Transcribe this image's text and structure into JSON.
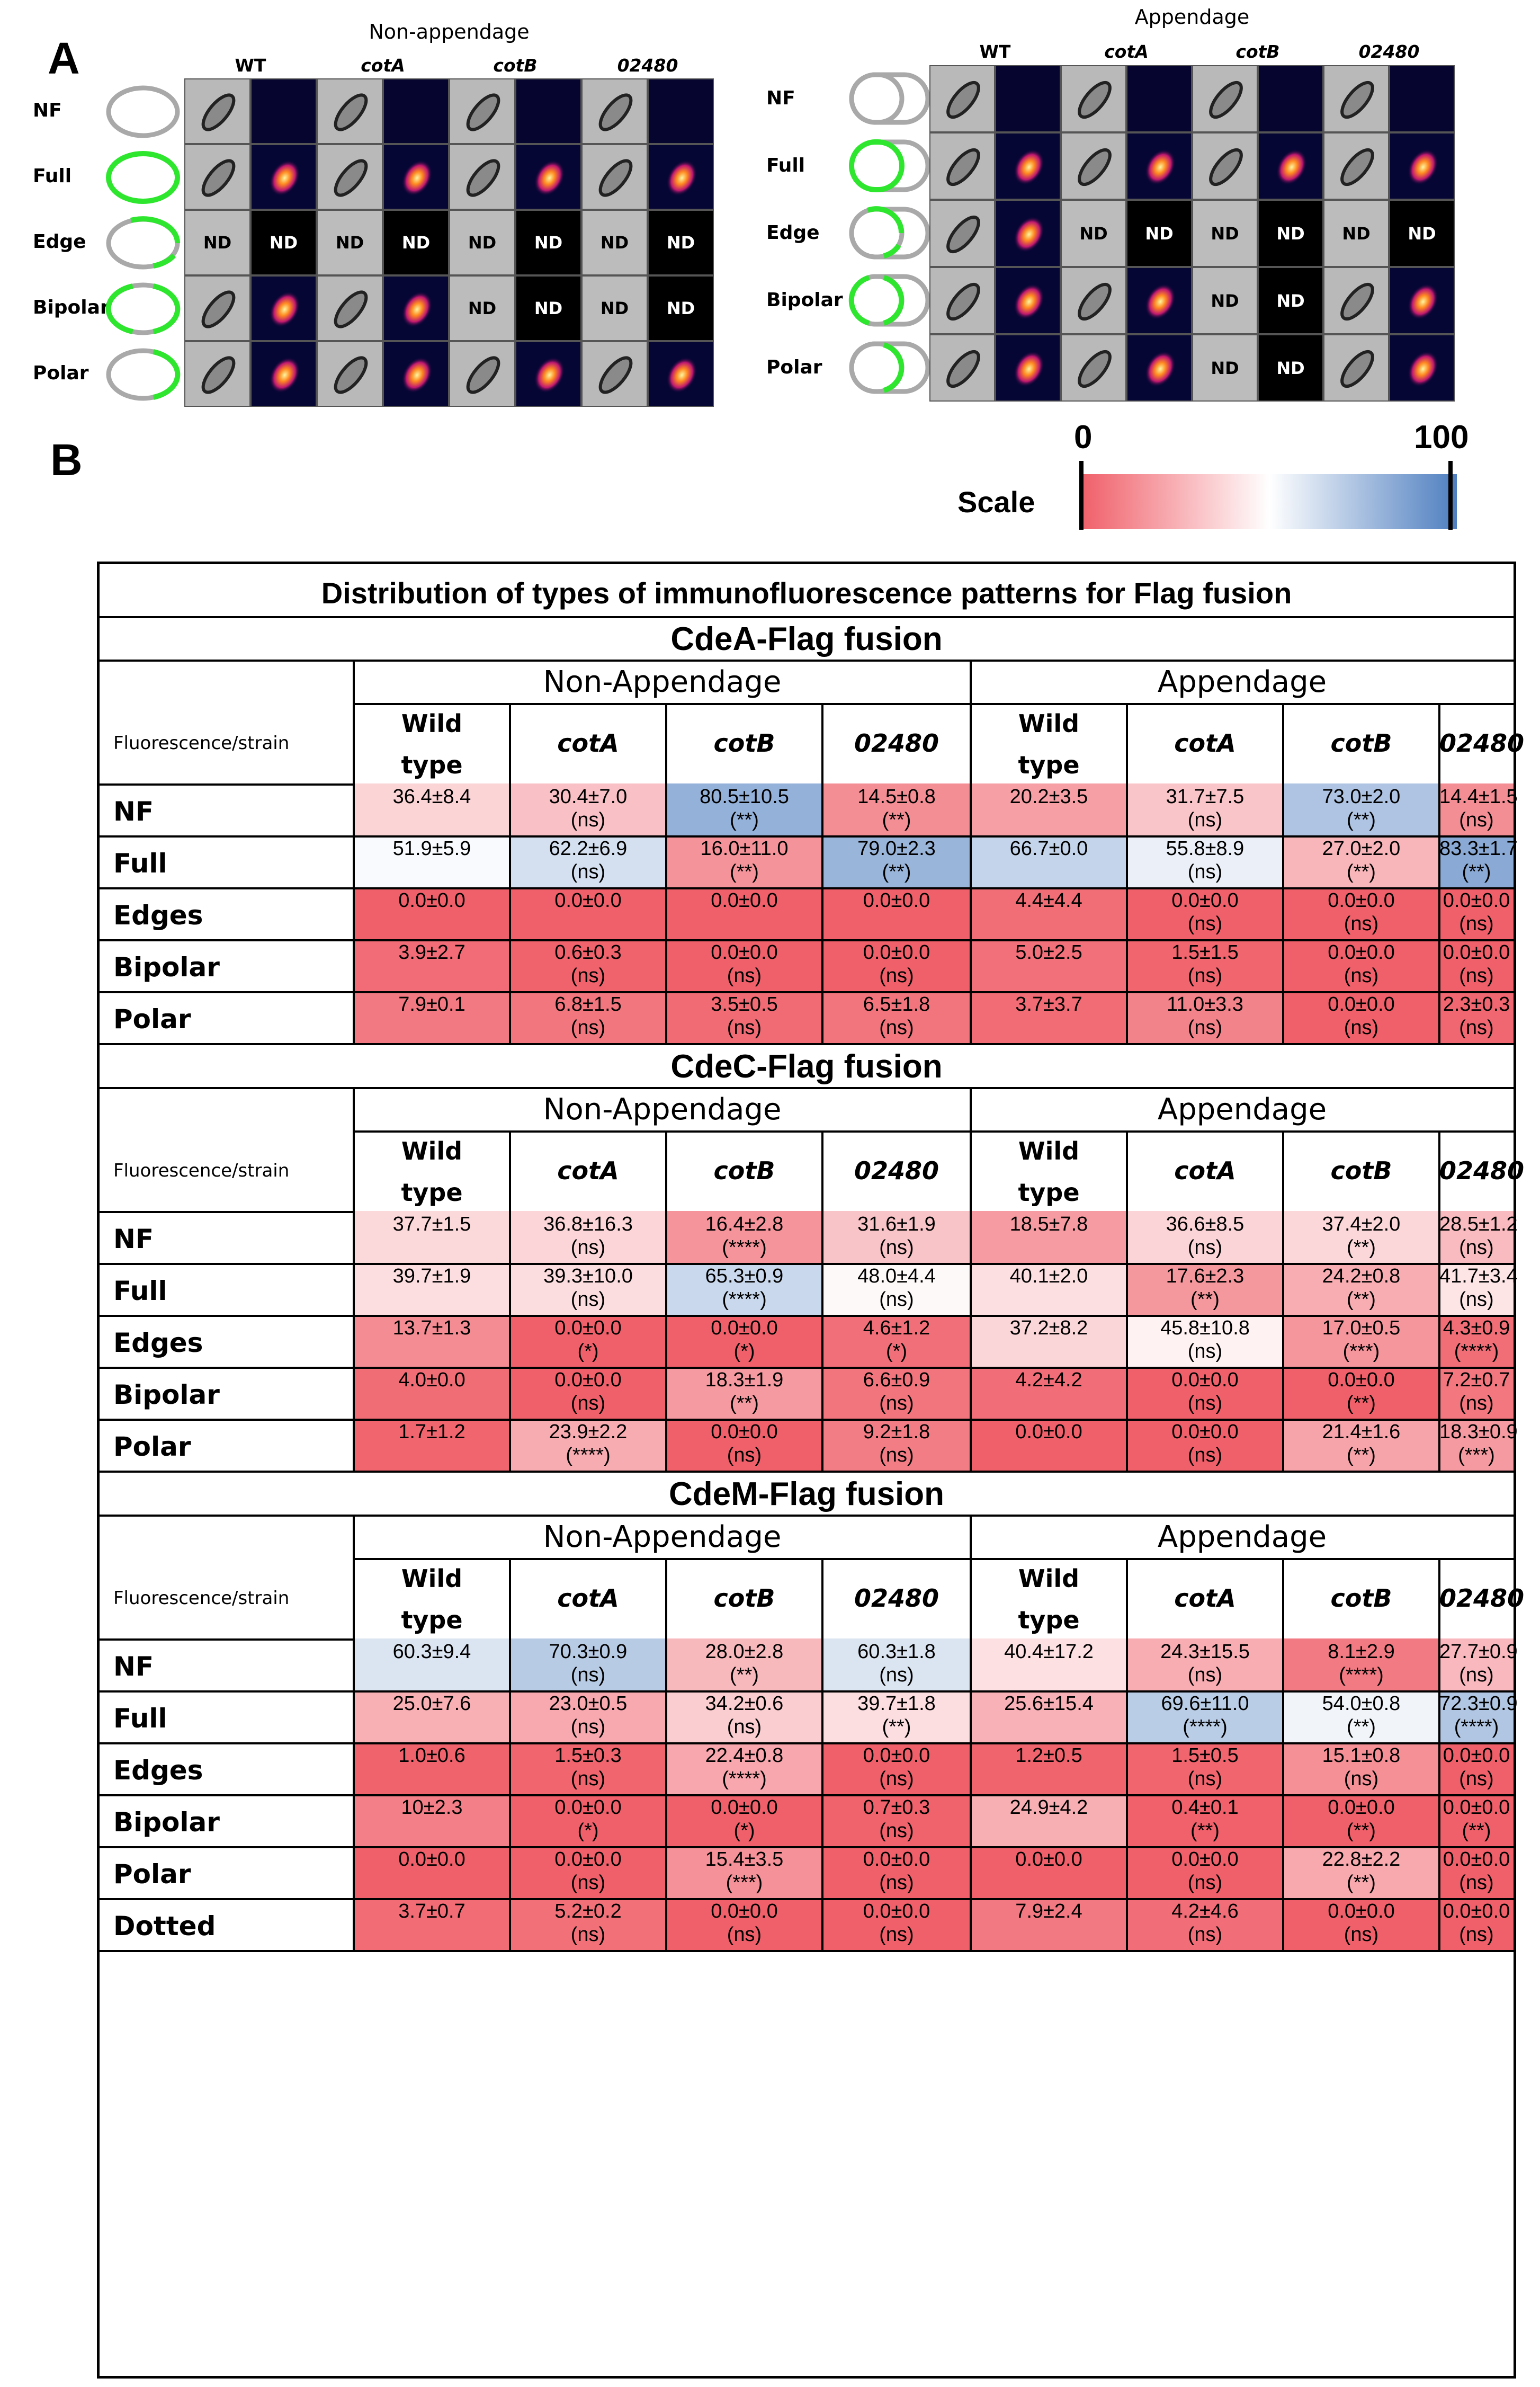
{
  "panel_a": {
    "letter": "A",
    "groups": [
      {
        "title": "Non-appendage",
        "columns": [
          "WT",
          "cotA",
          "cotB",
          "02480"
        ]
      },
      {
        "title": "Appendage",
        "columns": [
          "WT",
          "cotA",
          "cotB",
          "02480"
        ]
      }
    ],
    "rows": [
      "NF",
      "Full",
      "Edge",
      "Bipolar",
      "Polar"
    ],
    "nd_label": "ND"
  },
  "panel_b": {
    "letter": "B"
  },
  "scale": {
    "label": "Scale",
    "min_label": "0",
    "max_label": "100",
    "min_color": "#f0606a",
    "mid_color": "#ffffff",
    "max_color": "#4f7fc0"
  },
  "table": {
    "title": "Distribution of types of immunofluorescence patterns for Flag fusion",
    "group_labels": [
      "Non-Appendage",
      "Appendage"
    ],
    "row_header": "Fluorescence/strain",
    "strains": [
      "Wild\ntype",
      "cotA",
      "cotB",
      "02480",
      "Wild\ntype",
      "cotA",
      "cotB",
      "02480"
    ],
    "sections": [
      {
        "title": "CdeA-Flag fusion",
        "rows": [
          {
            "label": "NF",
            "cells": [
              {
                "v": "36.4±8.4",
                "s": ""
              },
              {
                "v": "30.4±7.0",
                "s": "(ns)"
              },
              {
                "v": "80.5±10.5",
                "s": "(**)"
              },
              {
                "v": "14.5±0.8",
                "s": "(**)"
              },
              {
                "v": "20.2±3.5",
                "s": ""
              },
              {
                "v": "31.7±7.5",
                "s": "(ns)"
              },
              {
                "v": "73.0±2.0",
                "s": "(**)"
              },
              {
                "v": "14.4±1.5",
                "s": "(ns)"
              }
            ]
          },
          {
            "label": "Full",
            "cells": [
              {
                "v": "51.9±5.9",
                "s": ""
              },
              {
                "v": "62.2±6.9",
                "s": "(ns)"
              },
              {
                "v": "16.0±11.0",
                "s": "(**)"
              },
              {
                "v": "79.0±2.3",
                "s": "(**)"
              },
              {
                "v": "66.7±0.0",
                "s": ""
              },
              {
                "v": "55.8±8.9",
                "s": "(ns)"
              },
              {
                "v": "27.0±2.0",
                "s": "(**)"
              },
              {
                "v": "83.3±1.7",
                "s": "(**)"
              }
            ]
          },
          {
            "label": "Edges",
            "cells": [
              {
                "v": "0.0±0.0",
                "s": ""
              },
              {
                "v": "0.0±0.0",
                "s": ""
              },
              {
                "v": "0.0±0.0",
                "s": ""
              },
              {
                "v": "0.0±0.0",
                "s": ""
              },
              {
                "v": "4.4±4.4",
                "s": ""
              },
              {
                "v": "0.0±0.0",
                "s": "(ns)"
              },
              {
                "v": "0.0±0.0",
                "s": "(ns)"
              },
              {
                "v": "0.0±0.0",
                "s": "(ns)"
              }
            ]
          },
          {
            "label": "Bipolar",
            "cells": [
              {
                "v": "3.9±2.7",
                "s": ""
              },
              {
                "v": "0.6±0.3",
                "s": "(ns)"
              },
              {
                "v": "0.0±0.0",
                "s": "(ns)"
              },
              {
                "v": "0.0±0.0",
                "s": "(ns)"
              },
              {
                "v": "5.0±2.5",
                "s": ""
              },
              {
                "v": "1.5±1.5",
                "s": "(ns)"
              },
              {
                "v": "0.0±0.0",
                "s": "(ns)"
              },
              {
                "v": "0.0±0.0",
                "s": "(ns)"
              }
            ]
          },
          {
            "label": "Polar",
            "cells": [
              {
                "v": "7.9±0.1",
                "s": ""
              },
              {
                "v": "6.8±1.5",
                "s": "(ns)"
              },
              {
                "v": "3.5±0.5",
                "s": "(ns)"
              },
              {
                "v": "6.5±1.8",
                "s": "(ns)"
              },
              {
                "v": "3.7±3.7",
                "s": ""
              },
              {
                "v": "11.0±3.3",
                "s": "(ns)"
              },
              {
                "v": "0.0±0.0",
                "s": "(ns)"
              },
              {
                "v": "2.3±0.3",
                "s": "(ns)"
              }
            ]
          }
        ]
      },
      {
        "title": "CdeC-Flag fusion",
        "rows": [
          {
            "label": "NF",
            "cells": [
              {
                "v": "37.7±1.5",
                "s": ""
              },
              {
                "v": "36.8±16.3",
                "s": "(ns)"
              },
              {
                "v": "16.4±2.8",
                "s": "(****)"
              },
              {
                "v": "31.6±1.9",
                "s": "(ns)"
              },
              {
                "v": "18.5±7.8",
                "s": ""
              },
              {
                "v": "36.6±8.5",
                "s": "(ns)"
              },
              {
                "v": "37.4±2.0",
                "s": "(**)"
              },
              {
                "v": "28.5±1.2",
                "s": "(ns)"
              }
            ]
          },
          {
            "label": "Full",
            "cells": [
              {
                "v": "39.7±1.9",
                "s": ""
              },
              {
                "v": "39.3±10.0",
                "s": "(ns)"
              },
              {
                "v": "65.3±0.9",
                "s": "(****)"
              },
              {
                "v": "48.0±4.4",
                "s": "(ns)"
              },
              {
                "v": "40.1±2.0",
                "s": ""
              },
              {
                "v": "17.6±2.3",
                "s": "(**)"
              },
              {
                "v": "24.2±0.8",
                "s": "(**)"
              },
              {
                "v": "41.7±3.4",
                "s": "(ns)"
              }
            ]
          },
          {
            "label": "Edges",
            "cells": [
              {
                "v": "13.7±1.3",
                "s": ""
              },
              {
                "v": "0.0±0.0",
                "s": "(*)"
              },
              {
                "v": "0.0±0.0",
                "s": "(*)"
              },
              {
                "v": "4.6±1.2",
                "s": "(*)"
              },
              {
                "v": "37.2±8.2",
                "s": ""
              },
              {
                "v": "45.8±10.8",
                "s": "(ns)"
              },
              {
                "v": "17.0±0.5",
                "s": "(***)"
              },
              {
                "v": "4.3±0.9",
                "s": "(****)"
              }
            ]
          },
          {
            "label": "Bipolar",
            "cells": [
              {
                "v": "4.0±0.0",
                "s": ""
              },
              {
                "v": "0.0±0.0",
                "s": "(ns)"
              },
              {
                "v": "18.3±1.9",
                "s": "(**)"
              },
              {
                "v": "6.6±0.9",
                "s": "(ns)"
              },
              {
                "v": "4.2±4.2",
                "s": ""
              },
              {
                "v": "0.0±0.0",
                "s": "(ns)"
              },
              {
                "v": "0.0±0.0",
                "s": "(**)"
              },
              {
                "v": "7.2±0.7",
                "s": "(ns)"
              }
            ]
          },
          {
            "label": "Polar",
            "cells": [
              {
                "v": "1.7±1.2",
                "s": ""
              },
              {
                "v": "23.9±2.2",
                "s": "(****)"
              },
              {
                "v": "0.0±0.0",
                "s": "(ns)"
              },
              {
                "v": "9.2±1.8",
                "s": "(ns)"
              },
              {
                "v": "0.0±0.0",
                "s": ""
              },
              {
                "v": "0.0±0.0",
                "s": "(ns)"
              },
              {
                "v": "21.4±1.6",
                "s": "(**)"
              },
              {
                "v": "18.3±0.9",
                "s": "(***)"
              }
            ]
          }
        ]
      },
      {
        "title": "CdeM-Flag fusion",
        "rows": [
          {
            "label": "NF",
            "cells": [
              {
                "v": "60.3±9.4",
                "s": ""
              },
              {
                "v": "70.3±0.9",
                "s": "(ns)"
              },
              {
                "v": "28.0±2.8",
                "s": "(**)"
              },
              {
                "v": "60.3±1.8",
                "s": "(ns)"
              },
              {
                "v": "40.4±17.2",
                "s": ""
              },
              {
                "v": "24.3±15.5",
                "s": "(ns)"
              },
              {
                "v": "8.1±2.9",
                "s": "(****)"
              },
              {
                "v": "27.7±0.9",
                "s": "(ns)"
              }
            ]
          },
          {
            "label": "Full",
            "cells": [
              {
                "v": "25.0±7.6",
                "s": ""
              },
              {
                "v": "23.0±0.5",
                "s": "(ns)"
              },
              {
                "v": "34.2±0.6",
                "s": "(ns)"
              },
              {
                "v": "39.7±1.8",
                "s": "(**)"
              },
              {
                "v": "25.6±15.4",
                "s": ""
              },
              {
                "v": "69.6±11.0",
                "s": "(****)"
              },
              {
                "v": "54.0±0.8",
                "s": "(**)"
              },
              {
                "v": "72.3±0.9",
                "s": "(****)"
              }
            ]
          },
          {
            "label": "Edges",
            "cells": [
              {
                "v": "1.0±0.6",
                "s": ""
              },
              {
                "v": "1.5±0.3",
                "s": "(ns)"
              },
              {
                "v": "22.4±0.8",
                "s": "(****)"
              },
              {
                "v": "0.0±0.0",
                "s": "(ns)"
              },
              {
                "v": "1.2±0.5",
                "s": ""
              },
              {
                "v": "1.5±0.5",
                "s": "(ns)"
              },
              {
                "v": "15.1±0.8",
                "s": "(ns)"
              },
              {
                "v": "0.0±0.0",
                "s": "(ns)"
              }
            ]
          },
          {
            "label": "Bipolar",
            "cells": [
              {
                "v": "10±2.3",
                "s": ""
              },
              {
                "v": "0.0±0.0",
                "s": "(*)"
              },
              {
                "v": "0.0±0.0",
                "s": "(*)"
              },
              {
                "v": "0.7±0.3",
                "s": "(ns)"
              },
              {
                "v": "24.9±4.2",
                "s": ""
              },
              {
                "v": "0.4±0.1",
                "s": "(**)"
              },
              {
                "v": "0.0±0.0",
                "s": "(**)"
              },
              {
                "v": "0.0±0.0",
                "s": "(**)"
              }
            ]
          },
          {
            "label": "Polar",
            "cells": [
              {
                "v": "0.0±0.0",
                "s": ""
              },
              {
                "v": "0.0±0.0",
                "s": "(ns)"
              },
              {
                "v": "15.4±3.5",
                "s": "(***)"
              },
              {
                "v": "0.0±0.0",
                "s": "(ns)"
              },
              {
                "v": "0.0±0.0",
                "s": ""
              },
              {
                "v": "0.0±0.0",
                "s": "(ns)"
              },
              {
                "v": "22.8±2.2",
                "s": "(**)"
              },
              {
                "v": "0.0±0.0",
                "s": "(ns)"
              }
            ]
          },
          {
            "label": "Dotted",
            "cells": [
              {
                "v": "3.7±0.7",
                "s": ""
              },
              {
                "v": "5.2±0.2",
                "s": "(ns)"
              },
              {
                "v": "0.0±0.0",
                "s": "(ns)"
              },
              {
                "v": "0.0±0.0",
                "s": "(ns)"
              },
              {
                "v": "7.9±2.4",
                "s": ""
              },
              {
                "v": "4.2±4.6",
                "s": "(ns)"
              },
              {
                "v": "0.0±0.0",
                "s": "(ns)"
              },
              {
                "v": "0.0±0.0",
                "s": "(ns)"
              }
            ]
          }
        ]
      }
    ]
  }
}
